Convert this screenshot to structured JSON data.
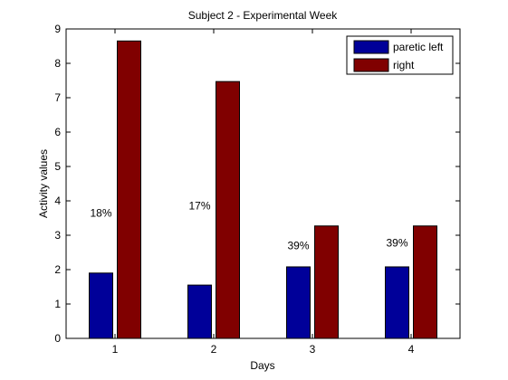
{
  "chart_data": {
    "type": "bar",
    "title": "Subject 2 - Experimental Week",
    "xlabel": "Days",
    "ylabel": "Activity values",
    "categories": [
      "1",
      "2",
      "3",
      "4"
    ],
    "ylim": [
      0,
      9
    ],
    "yticks": [
      0,
      1,
      2,
      3,
      4,
      5,
      6,
      7,
      8,
      9
    ],
    "grid": false,
    "legend_position": "top-right",
    "series": [
      {
        "name": "paretic left",
        "color": "#000099",
        "values": [
          1.9,
          1.55,
          2.08,
          2.08
        ]
      },
      {
        "name": "right",
        "color": "#800000",
        "values": [
          8.65,
          7.47,
          3.27,
          3.27
        ]
      }
    ],
    "annotations": [
      {
        "text": "18%",
        "category": "1",
        "y": 3.65
      },
      {
        "text": "17%",
        "category": "2",
        "y": 3.85
      },
      {
        "text": "39%",
        "category": "3",
        "y": 2.7
      },
      {
        "text": "39%",
        "category": "4",
        "y": 2.78
      }
    ]
  }
}
